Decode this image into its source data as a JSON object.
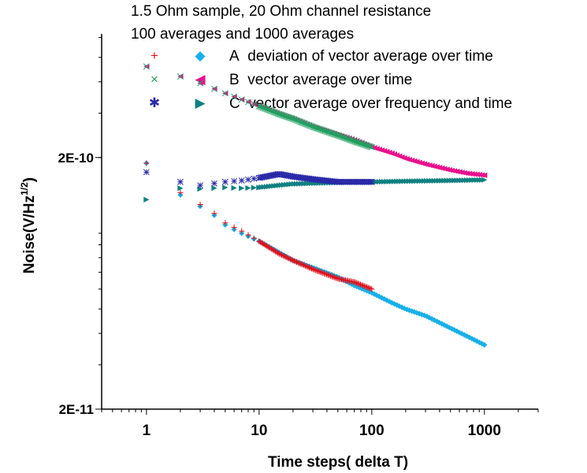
{
  "header": {
    "line1": "1.5 Ohm sample, 20 Ohm channel resistance",
    "line2": "100 averages and 1000 averages"
  },
  "legend": [
    {
      "series100_symbol": "+",
      "series1000_symbol": "◆",
      "letter": "A",
      "text": "deviation of vector average over time",
      "color100": "#e0101a",
      "color1000": "#18b0e8"
    },
    {
      "series100_symbol": "×",
      "series1000_symbol": "◀",
      "letter": "B",
      "text": "vector average over time",
      "color100": "#20a060",
      "color1000": "#e8108c"
    },
    {
      "series100_symbol": "✱",
      "series1000_symbol": "▶",
      "letter": "C",
      "text": "vector average over frequency and time",
      "color100": "#2a2aa8",
      "color1000": "#108080"
    }
  ],
  "chart_data": {
    "type": "scatter",
    "xlabel": "Time steps( delta T)",
    "ylabel": "Noise(V/Hz",
    "ylabel_sup": "1/2",
    "ylabel_end": ")",
    "x_scale": "log",
    "y_scale": "log",
    "xlim": [
      0.4,
      3000
    ],
    "ylim": [
      2e-11,
      6.2e-10
    ],
    "x_ticks": [
      1,
      10,
      100,
      1000
    ],
    "x_tick_labels": [
      "1",
      "10",
      "100",
      "1000"
    ],
    "y_ticks": [
      2e-11,
      2e-10
    ],
    "y_tick_labels": [
      "2E-11",
      "2E-10"
    ],
    "grid": false,
    "series": [
      {
        "name": "A deviation of vector average over time (100 averages)",
        "marker": "plus",
        "color": "#e0101a",
        "x_max": 100,
        "points": [
          [
            1,
            1.9e-10
          ],
          [
            2,
            1.45e-10
          ],
          [
            3,
            1.3e-10
          ],
          [
            4,
            1.2e-10
          ],
          [
            5,
            1.1e-10
          ],
          [
            7,
            1.02e-10
          ],
          [
            10,
            9.3e-11
          ],
          [
            15,
            8.3e-11
          ],
          [
            20,
            7.8e-11
          ],
          [
            30,
            7.2e-11
          ],
          [
            50,
            6.6e-11
          ],
          [
            70,
            6.4e-11
          ],
          [
            100,
            6e-11
          ]
        ]
      },
      {
        "name": "A deviation of vector average over time (1000 averages)",
        "marker": "diamond",
        "color": "#18b0e8",
        "x_max": 1000,
        "points": [
          [
            1,
            1.9e-10
          ],
          [
            2,
            1.42e-10
          ],
          [
            3,
            1.28e-10
          ],
          [
            4,
            1.18e-10
          ],
          [
            5,
            1.08e-10
          ],
          [
            7,
            1e-10
          ],
          [
            10,
            9.3e-11
          ],
          [
            15,
            8.4e-11
          ],
          [
            20,
            7.8e-11
          ],
          [
            30,
            7.3e-11
          ],
          [
            50,
            6.7e-11
          ],
          [
            70,
            6.2e-11
          ],
          [
            100,
            5.8e-11
          ],
          [
            150,
            5.3e-11
          ],
          [
            200,
            5e-11
          ],
          [
            300,
            4.7e-11
          ],
          [
            500,
            4.2e-11
          ],
          [
            700,
            3.9e-11
          ],
          [
            1000,
            3.6e-11
          ]
        ]
      },
      {
        "name": "B vector average over time (100 averages)",
        "marker": "cross",
        "color": "#20a060",
        "x_max": 100,
        "points": [
          [
            1,
            4.6e-10
          ],
          [
            2,
            4.2e-10
          ],
          [
            3,
            3.95e-10
          ],
          [
            5,
            3.6e-10
          ],
          [
            7,
            3.4e-10
          ],
          [
            10,
            3.2e-10
          ],
          [
            15,
            2.98e-10
          ],
          [
            20,
            2.85e-10
          ],
          [
            30,
            2.65e-10
          ],
          [
            50,
            2.45e-10
          ],
          [
            70,
            2.32e-10
          ],
          [
            100,
            2.2e-10
          ]
        ]
      },
      {
        "name": "B vector average over time (1000 averages)",
        "marker": "tri-left",
        "color": "#e8108c",
        "x_max": 1000,
        "points": [
          [
            1,
            4.6e-10
          ],
          [
            2,
            4.2e-10
          ],
          [
            3,
            3.95e-10
          ],
          [
            5,
            3.6e-10
          ],
          [
            7,
            3.4e-10
          ],
          [
            10,
            3.2e-10
          ],
          [
            15,
            2.98e-10
          ],
          [
            20,
            2.85e-10
          ],
          [
            30,
            2.65e-10
          ],
          [
            50,
            2.46e-10
          ],
          [
            70,
            2.35e-10
          ],
          [
            100,
            2.2e-10
          ],
          [
            150,
            2.08e-10
          ],
          [
            200,
            1.98e-10
          ],
          [
            300,
            1.88e-10
          ],
          [
            500,
            1.78e-10
          ],
          [
            700,
            1.73e-10
          ],
          [
            1000,
            1.7e-10
          ]
        ]
      },
      {
        "name": "C vector average over frequency and time (100 averages)",
        "marker": "asterisk",
        "color": "#2a2aa8",
        "x_max": 100,
        "points": [
          [
            1,
            1.75e-10
          ],
          [
            2,
            1.6e-10
          ],
          [
            3,
            1.55e-10
          ],
          [
            5,
            1.6e-10
          ],
          [
            7,
            1.62e-10
          ],
          [
            10,
            1.66e-10
          ],
          [
            15,
            1.72e-10
          ],
          [
            20,
            1.68e-10
          ],
          [
            30,
            1.64e-10
          ],
          [
            50,
            1.6e-10
          ],
          [
            70,
            1.6e-10
          ],
          [
            100,
            1.6e-10
          ]
        ]
      },
      {
        "name": "C vector average over frequency and time (1000 averages)",
        "marker": "tri-right",
        "color": "#108080",
        "x_max": 1000,
        "points": [
          [
            1,
            1.36e-10
          ],
          [
            2,
            1.51e-10
          ],
          [
            3,
            1.5e-10
          ],
          [
            5,
            1.52e-10
          ],
          [
            7,
            1.51e-10
          ],
          [
            10,
            1.52e-10
          ],
          [
            15,
            1.55e-10
          ],
          [
            20,
            1.57e-10
          ],
          [
            30,
            1.58e-10
          ],
          [
            50,
            1.59e-10
          ],
          [
            70,
            1.6e-10
          ],
          [
            100,
            1.6e-10
          ],
          [
            200,
            1.61e-10
          ],
          [
            500,
            1.62e-10
          ],
          [
            1000,
            1.63e-10
          ]
        ]
      }
    ]
  }
}
